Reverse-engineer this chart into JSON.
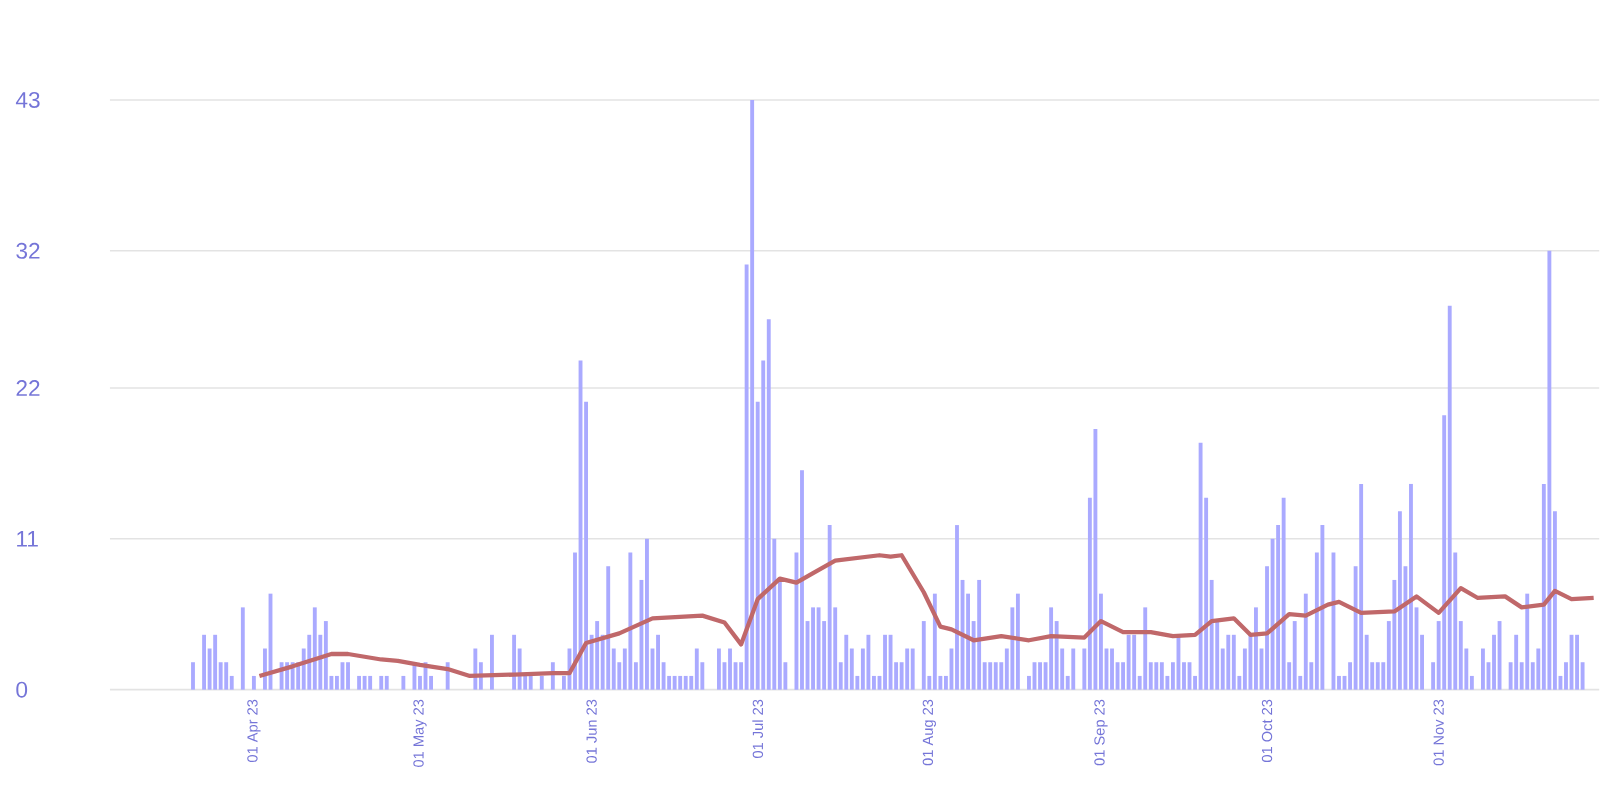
{
  "chart_data": {
    "type": "bar",
    "ylim": [
      0,
      43
    ],
    "yticks": [
      0,
      11,
      22,
      32,
      43
    ],
    "grid": "y",
    "xlim": [
      "2023-03-06",
      "2023-11-30"
    ],
    "xticks": [
      {
        "value": "2023-04-01",
        "label": "01 Apr 23"
      },
      {
        "value": "2023-05-01",
        "label": "01 May 23"
      },
      {
        "value": "2023-06-01",
        "label": "01 Jun 23"
      },
      {
        "value": "2023-07-01",
        "label": "01 Jul 23"
      },
      {
        "value": "2023-08-01",
        "label": "01 Aug 23"
      },
      {
        "value": "2023-09-01",
        "label": "01 Sep 23"
      },
      {
        "value": "2023-10-01",
        "label": "01 Oct 23"
      },
      {
        "value": "2023-11-01",
        "label": "01 Nov 23"
      }
    ],
    "series": [
      {
        "color": "#aaaaff",
        "x": [
          "2023-03-21",
          "2023-03-23",
          "2023-03-24",
          "2023-03-25",
          "2023-03-26",
          "2023-03-27",
          "2023-03-28",
          "2023-03-30",
          "2023-04-01",
          "2023-04-03",
          "2023-04-04",
          "2023-04-06",
          "2023-04-07",
          "2023-04-08",
          "2023-04-09",
          "2023-04-10",
          "2023-04-11",
          "2023-04-12",
          "2023-04-13",
          "2023-04-14",
          "2023-04-15",
          "2023-04-16",
          "2023-04-17",
          "2023-04-18",
          "2023-04-20",
          "2023-04-21",
          "2023-04-22",
          "2023-04-24",
          "2023-04-25",
          "2023-04-28",
          "2023-04-30",
          "2023-05-01",
          "2023-05-02",
          "2023-05-03",
          "2023-05-06",
          "2023-05-11",
          "2023-05-12",
          "2023-05-14",
          "2023-05-18",
          "2023-05-19",
          "2023-05-20",
          "2023-05-21",
          "2023-05-23",
          "2023-05-25",
          "2023-05-27",
          "2023-05-28",
          "2023-05-29",
          "2023-05-30",
          "2023-05-31",
          "2023-06-01",
          "2023-06-02",
          "2023-06-03",
          "2023-06-04",
          "2023-06-05",
          "2023-06-06",
          "2023-06-07",
          "2023-06-08",
          "2023-06-09",
          "2023-06-10",
          "2023-06-11",
          "2023-06-12",
          "2023-06-13",
          "2023-06-14",
          "2023-06-15",
          "2023-06-16",
          "2023-06-17",
          "2023-06-18",
          "2023-06-19",
          "2023-06-20",
          "2023-06-21",
          "2023-06-24",
          "2023-06-25",
          "2023-06-26",
          "2023-06-27",
          "2023-06-28",
          "2023-06-29",
          "2023-06-30",
          "2023-07-01",
          "2023-07-02",
          "2023-07-03",
          "2023-07-04",
          "2023-07-05",
          "2023-07-06",
          "2023-07-08",
          "2023-07-09",
          "2023-07-10",
          "2023-07-11",
          "2023-07-12",
          "2023-07-13",
          "2023-07-14",
          "2023-07-15",
          "2023-07-16",
          "2023-07-17",
          "2023-07-18",
          "2023-07-19",
          "2023-07-20",
          "2023-07-21",
          "2023-07-22",
          "2023-07-23",
          "2023-07-24",
          "2023-07-25",
          "2023-07-26",
          "2023-07-27",
          "2023-07-28",
          "2023-07-29",
          "2023-07-31",
          "2023-08-01",
          "2023-08-02",
          "2023-08-03",
          "2023-08-04",
          "2023-08-05",
          "2023-08-06",
          "2023-08-07",
          "2023-08-08",
          "2023-08-09",
          "2023-08-10",
          "2023-08-11",
          "2023-08-12",
          "2023-08-13",
          "2023-08-14",
          "2023-08-15",
          "2023-08-16",
          "2023-08-17",
          "2023-08-19",
          "2023-08-20",
          "2023-08-21",
          "2023-08-22",
          "2023-08-23",
          "2023-08-24",
          "2023-08-25",
          "2023-08-26",
          "2023-08-27",
          "2023-08-29",
          "2023-08-30",
          "2023-08-31",
          "2023-09-01",
          "2023-09-02",
          "2023-09-03",
          "2023-09-04",
          "2023-09-05",
          "2023-09-06",
          "2023-09-07",
          "2023-09-08",
          "2023-09-09",
          "2023-09-10",
          "2023-09-11",
          "2023-09-12",
          "2023-09-13",
          "2023-09-14",
          "2023-09-15",
          "2023-09-16",
          "2023-09-17",
          "2023-09-18",
          "2023-09-19",
          "2023-09-20",
          "2023-09-21",
          "2023-09-22",
          "2023-09-23",
          "2023-09-24",
          "2023-09-25",
          "2023-09-26",
          "2023-09-27",
          "2023-09-28",
          "2023-09-29",
          "2023-09-30",
          "2023-10-01",
          "2023-10-02",
          "2023-10-03",
          "2023-10-04",
          "2023-10-05",
          "2023-10-06",
          "2023-10-07",
          "2023-10-08",
          "2023-10-09",
          "2023-10-10",
          "2023-10-11",
          "2023-10-13",
          "2023-10-14",
          "2023-10-15",
          "2023-10-16",
          "2023-10-17",
          "2023-10-18",
          "2023-10-19",
          "2023-10-20",
          "2023-10-21",
          "2023-10-22",
          "2023-10-23",
          "2023-10-24",
          "2023-10-25",
          "2023-10-26",
          "2023-10-27",
          "2023-10-28",
          "2023-10-29",
          "2023-10-31",
          "2023-11-01",
          "2023-11-02",
          "2023-11-03",
          "2023-11-04",
          "2023-11-05",
          "2023-11-06",
          "2023-11-07",
          "2023-11-09",
          "2023-11-10",
          "2023-11-11",
          "2023-11-12",
          "2023-11-14",
          "2023-11-15",
          "2023-11-16",
          "2023-11-17",
          "2023-11-18",
          "2023-11-19",
          "2023-11-20",
          "2023-11-21",
          "2023-11-22",
          "2023-11-23",
          "2023-11-24",
          "2023-11-25",
          "2023-11-26",
          "2023-11-27"
        ],
        "values": [
          2,
          4,
          3,
          4,
          2,
          2,
          1,
          6,
          1,
          3,
          7,
          2,
          2,
          2,
          2,
          3,
          4,
          6,
          4,
          5,
          1,
          1,
          2,
          2,
          1,
          1,
          1,
          1,
          1,
          1,
          2,
          1,
          2,
          1,
          2,
          3,
          2,
          4,
          4,
          3,
          1,
          1,
          1,
          2,
          1,
          3,
          10,
          24,
          21,
          4,
          5,
          4,
          9,
          3,
          2,
          3,
          10,
          2,
          8,
          11,
          3,
          4,
          2,
          1,
          1,
          1,
          1,
          1,
          3,
          2,
          3,
          2,
          3,
          2,
          2,
          31,
          43,
          21,
          24,
          27,
          11,
          8,
          2,
          10,
          16,
          5,
          6,
          6,
          5,
          12,
          6,
          2,
          4,
          3,
          1,
          3,
          4,
          1,
          1,
          4,
          4,
          2,
          2,
          3,
          3,
          5,
          1,
          7,
          1,
          1,
          3,
          12,
          8,
          7,
          5,
          8,
          2,
          2,
          2,
          2,
          3,
          6,
          7,
          1,
          2,
          2,
          2,
          6,
          5,
          3,
          1,
          3,
          3,
          14,
          19,
          7,
          3,
          3,
          2,
          2,
          4,
          4,
          1,
          6,
          2,
          2,
          2,
          1,
          2,
          4,
          2,
          2,
          1,
          18,
          14,
          8,
          5,
          3,
          4,
          4,
          1,
          3,
          4,
          6,
          3,
          9,
          11,
          12,
          14,
          2,
          5,
          1,
          7,
          2,
          10,
          12,
          10,
          1,
          1,
          2,
          9,
          15,
          4,
          2,
          2,
          2,
          5,
          8,
          13,
          9,
          15,
          6,
          4,
          2,
          5,
          20,
          28,
          10,
          5,
          3,
          1,
          3,
          2,
          4,
          5,
          2,
          4,
          2,
          7,
          2,
          3,
          15,
          32,
          13,
          1,
          2,
          4,
          4,
          2
        ]
      },
      {
        "type": "line",
        "color": "#c0686a",
        "x": [
          "2023-04-02",
          "2023-04-08",
          "2023-04-15",
          "2023-04-18",
          "2023-04-24",
          "2023-04-27",
          "2023-05-01",
          "2023-05-06",
          "2023-05-10",
          "2023-05-18",
          "2023-05-25",
          "2023-05-28",
          "2023-05-31",
          "2023-06-06",
          "2023-06-12",
          "2023-06-21",
          "2023-06-25",
          "2023-06-28",
          "2023-07-01",
          "2023-07-05",
          "2023-07-08",
          "2023-07-11",
          "2023-07-15",
          "2023-07-23",
          "2023-07-25",
          "2023-07-27",
          "2023-07-31",
          "2023-08-03",
          "2023-08-05",
          "2023-08-09",
          "2023-08-14",
          "2023-08-19",
          "2023-08-23",
          "2023-08-29",
          "2023-09-01",
          "2023-09-05",
          "2023-09-10",
          "2023-09-14",
          "2023-09-18",
          "2023-09-21",
          "2023-09-25",
          "2023-09-28",
          "2023-10-01",
          "2023-10-05",
          "2023-10-08",
          "2023-10-12",
          "2023-10-14",
          "2023-10-18",
          "2023-10-24",
          "2023-10-28",
          "2023-11-01",
          "2023-11-05",
          "2023-11-08",
          "2023-11-13",
          "2023-11-16",
          "2023-11-20",
          "2023-11-22",
          "2023-11-25",
          "2023-11-29"
        ],
        "values": [
          1,
          1.7,
          2.6,
          2.6,
          2.2,
          2.1,
          1.8,
          1.5,
          1,
          1.1,
          1.2,
          1.2,
          3.4,
          4.1,
          5.2,
          5.4,
          4.9,
          3.3,
          6.6,
          8.1,
          7.8,
          8.5,
          9.4,
          9.8,
          9.7,
          9.8,
          7.1,
          4.6,
          4.4,
          3.6,
          3.9,
          3.6,
          3.9,
          3.8,
          5,
          4.2,
          4.2,
          3.9,
          4,
          5,
          5.2,
          4,
          4.1,
          5.5,
          5.4,
          6.2,
          6.4,
          5.6,
          5.7,
          6.8,
          5.6,
          7.4,
          6.7,
          6.8,
          6,
          6.2,
          7.2,
          6.6,
          6.7
        ]
      }
    ]
  }
}
